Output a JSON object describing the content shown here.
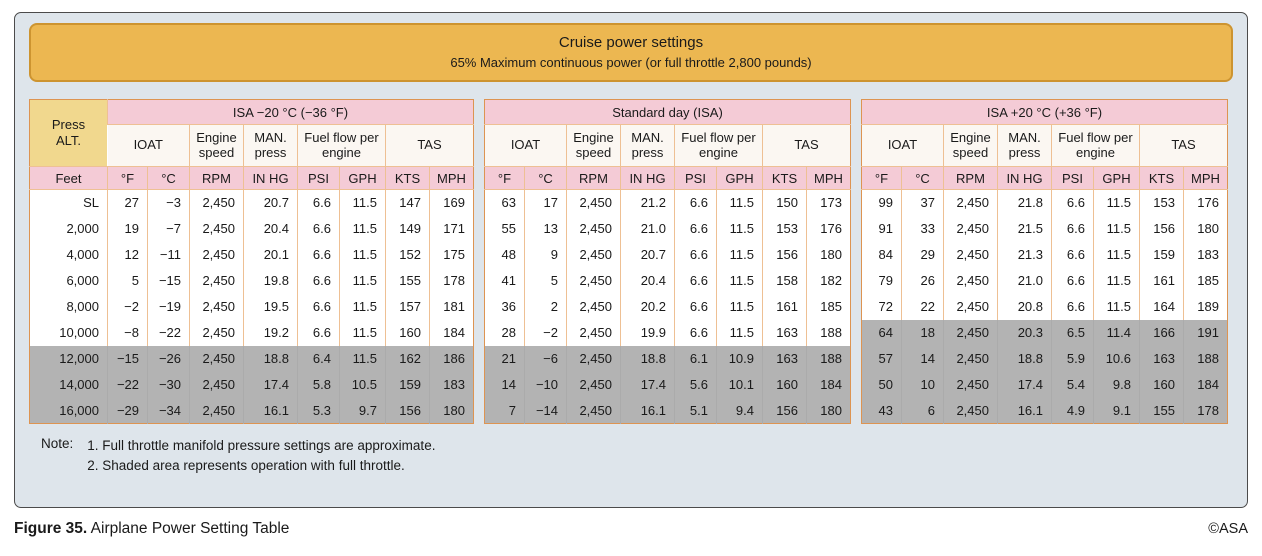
{
  "figure": {
    "title_line1": "Cruise power settings",
    "title_line2": "65% Maximum continuous power (or full throttle 2,800 pounds)",
    "notes": {
      "label": "Note:",
      "lines": [
        "1. Full throttle manifold pressure settings are approximate.",
        "2. Shaded area represents operation with full throttle."
      ]
    },
    "caption_bold": "Figure 35.",
    "caption_rest": " Airplane Power Setting Table",
    "credit": "©ASA"
  },
  "table": {
    "alt": {
      "header": "Press ALT.",
      "unit": "Feet",
      "shaded_from": 6,
      "values": [
        "SL",
        "2,000",
        "4,000",
        "6,000",
        "8,000",
        "10,000",
        "12,000",
        "14,000",
        "16,000"
      ]
    },
    "groups": [
      {
        "label": "IOAT",
        "span": 2
      },
      {
        "label": "Engine speed",
        "span": 1
      },
      {
        "label": "MAN. press",
        "span": 1
      },
      {
        "label": "Fuel flow per engine",
        "span": 2
      },
      {
        "label": "TAS",
        "span": 2
      }
    ],
    "units": [
      "°F",
      "°C",
      "RPM",
      "IN HG",
      "PSI",
      "GPH",
      "KTS",
      "MPH"
    ],
    "sections": [
      {
        "title": "ISA −20 °C (−36 °F)",
        "shaded_from": 6,
        "rows": [
          [
            "27",
            "−3",
            "2,450",
            "20.7",
            "6.6",
            "11.5",
            "147",
            "169"
          ],
          [
            "19",
            "−7",
            "2,450",
            "20.4",
            "6.6",
            "11.5",
            "149",
            "171"
          ],
          [
            "12",
            "−11",
            "2,450",
            "20.1",
            "6.6",
            "11.5",
            "152",
            "175"
          ],
          [
            "5",
            "−15",
            "2,450",
            "19.8",
            "6.6",
            "11.5",
            "155",
            "178"
          ],
          [
            "−2",
            "−19",
            "2,450",
            "19.5",
            "6.6",
            "11.5",
            "157",
            "181"
          ],
          [
            "−8",
            "−22",
            "2,450",
            "19.2",
            "6.6",
            "11.5",
            "160",
            "184"
          ],
          [
            "−15",
            "−26",
            "2,450",
            "18.8",
            "6.4",
            "11.5",
            "162",
            "186"
          ],
          [
            "−22",
            "−30",
            "2,450",
            "17.4",
            "5.8",
            "10.5",
            "159",
            "183"
          ],
          [
            "−29",
            "−34",
            "2,450",
            "16.1",
            "5.3",
            "9.7",
            "156",
            "180"
          ]
        ]
      },
      {
        "title": "Standard day (ISA)",
        "shaded_from": 6,
        "rows": [
          [
            "63",
            "17",
            "2,450",
            "21.2",
            "6.6",
            "11.5",
            "150",
            "173"
          ],
          [
            "55",
            "13",
            "2,450",
            "21.0",
            "6.6",
            "11.5",
            "153",
            "176"
          ],
          [
            "48",
            "9",
            "2,450",
            "20.7",
            "6.6",
            "11.5",
            "156",
            "180"
          ],
          [
            "41",
            "5",
            "2,450",
            "20.4",
            "6.6",
            "11.5",
            "158",
            "182"
          ],
          [
            "36",
            "2",
            "2,450",
            "20.2",
            "6.6",
            "11.5",
            "161",
            "185"
          ],
          [
            "28",
            "−2",
            "2,450",
            "19.9",
            "6.6",
            "11.5",
            "163",
            "188"
          ],
          [
            "21",
            "−6",
            "2,450",
            "18.8",
            "6.1",
            "10.9",
            "163",
            "188"
          ],
          [
            "14",
            "−10",
            "2,450",
            "17.4",
            "5.6",
            "10.1",
            "160",
            "184"
          ],
          [
            "7",
            "−14",
            "2,450",
            "16.1",
            "5.1",
            "9.4",
            "156",
            "180"
          ]
        ]
      },
      {
        "title": "ISA +20 °C (+36 °F)",
        "shaded_from": 5,
        "rows": [
          [
            "99",
            "37",
            "2,450",
            "21.8",
            "6.6",
            "11.5",
            "153",
            "176"
          ],
          [
            "91",
            "33",
            "2,450",
            "21.5",
            "6.6",
            "11.5",
            "156",
            "180"
          ],
          [
            "84",
            "29",
            "2,450",
            "21.3",
            "6.6",
            "11.5",
            "159",
            "183"
          ],
          [
            "79",
            "26",
            "2,450",
            "21.0",
            "6.6",
            "11.5",
            "161",
            "185"
          ],
          [
            "72",
            "22",
            "2,450",
            "20.8",
            "6.6",
            "11.5",
            "164",
            "189"
          ],
          [
            "64",
            "18",
            "2,450",
            "20.3",
            "6.5",
            "11.4",
            "166",
            "191"
          ],
          [
            "57",
            "14",
            "2,450",
            "18.8",
            "5.9",
            "10.6",
            "163",
            "188"
          ],
          [
            "50",
            "10",
            "2,450",
            "17.4",
            "5.4",
            "9.8",
            "160",
            "184"
          ],
          [
            "43",
            "6",
            "2,450",
            "16.1",
            "4.9",
            "9.1",
            "155",
            "178"
          ]
        ]
      }
    ]
  }
}
